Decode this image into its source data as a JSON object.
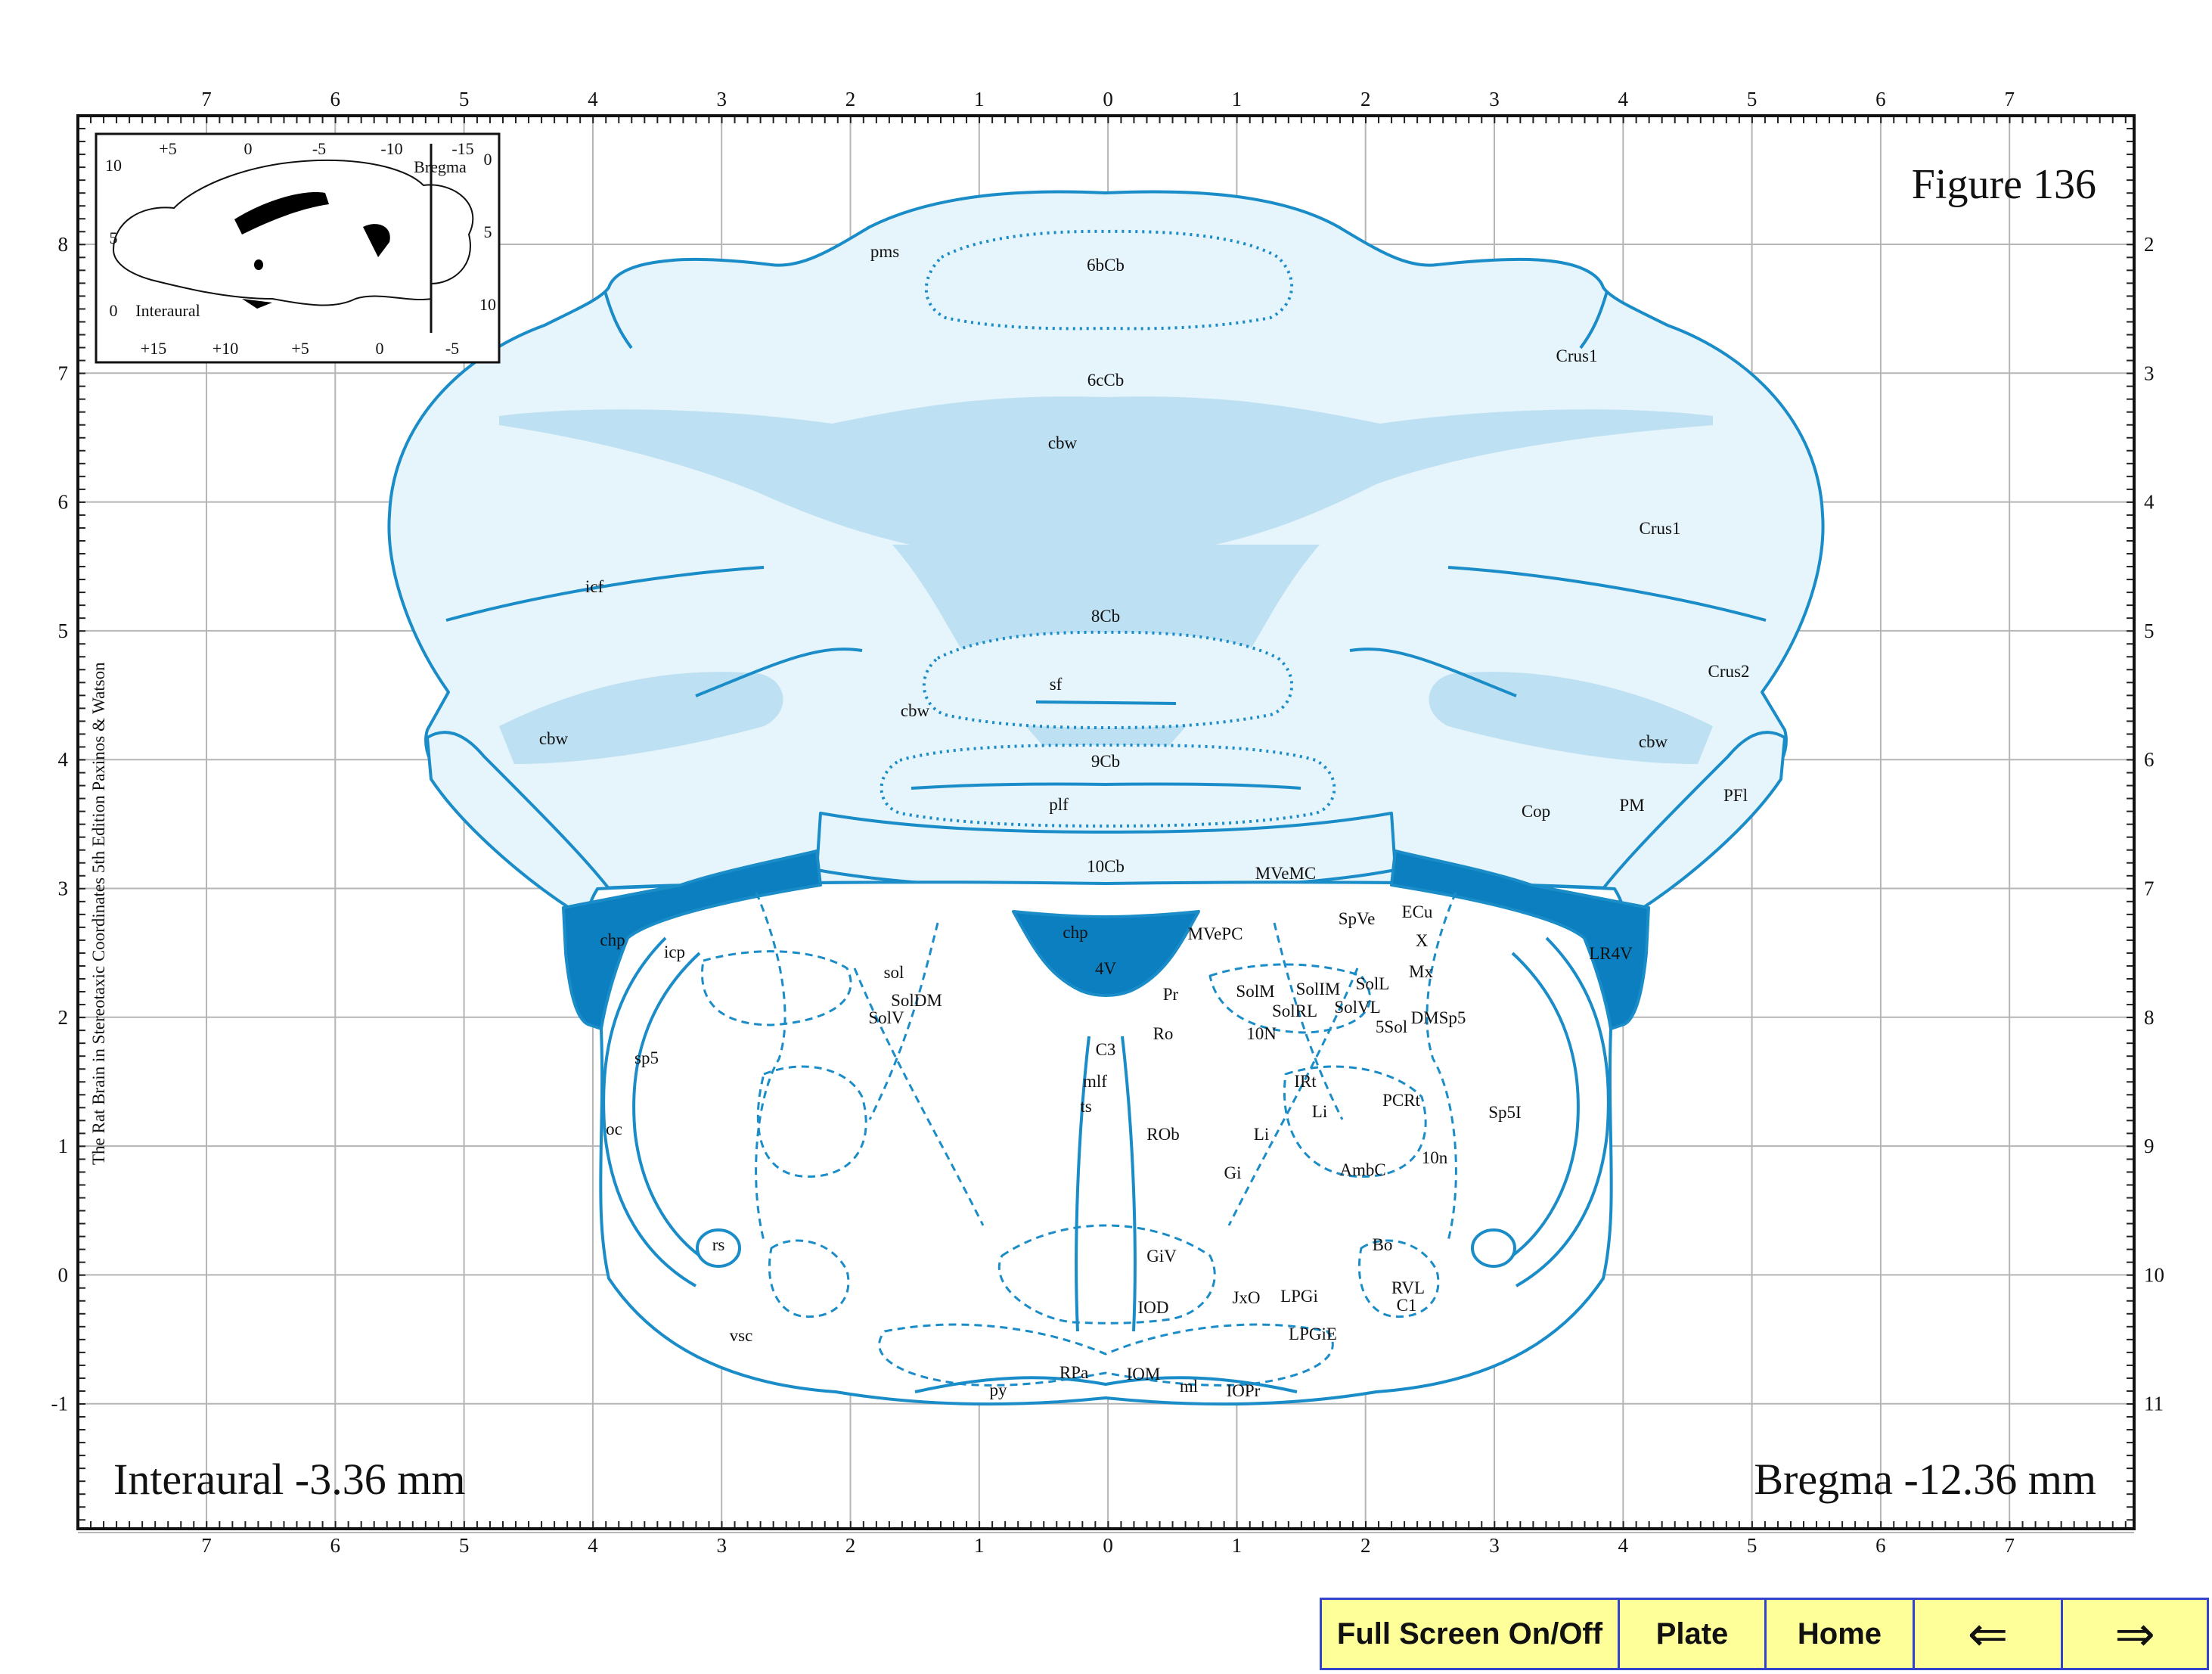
{
  "figure_title": "Figure 136",
  "interaural_caption": "Interaural -3.36 mm",
  "bregma_caption": "Bregma -12.36 mm",
  "side_credit": "The Rat Brain in Stereotaxic Coordinates  5th Edition  Paxinos & Watson",
  "colors": {
    "outline": "#1a8cc8",
    "white_matter": "#bde0f2",
    "gray_matter": "#e6f4fb",
    "choroid": "#0c7fc1",
    "grid": "#b5b5b5",
    "nav_bg": "#ffff99",
    "nav_border": "#3344cc"
  },
  "axes": {
    "top": [
      "7",
      "6",
      "5",
      "4",
      "3",
      "2",
      "1",
      "0",
      "1",
      "2",
      "3",
      "4",
      "5",
      "6",
      "7"
    ],
    "bottom": [
      "7",
      "6",
      "5",
      "4",
      "3",
      "2",
      "1",
      "0",
      "1",
      "2",
      "3",
      "4",
      "5",
      "6",
      "7"
    ],
    "left": [
      "8",
      "7",
      "6",
      "5",
      "4",
      "3",
      "2",
      "1",
      "0",
      "-1"
    ],
    "right": [
      "2",
      "3",
      "4",
      "5",
      "6",
      "7",
      "8",
      "9",
      "10",
      "11"
    ]
  },
  "inset": {
    "top_ticks": [
      "+5",
      "0",
      "-5",
      "-10",
      "-15"
    ],
    "bottom_ticks": [
      "+15",
      "+10",
      "+5",
      "0",
      "-5"
    ],
    "left_ticks": [
      "10",
      "5",
      "0"
    ],
    "right_ticks": [
      "0",
      "5",
      "10"
    ],
    "bregma_label": "Bregma",
    "interaural_label": "Interaural"
  },
  "structures": [
    "pms",
    "6bCb",
    "6cCb",
    "cbw",
    "Crus1",
    "Crus1",
    "icf",
    "8Cb",
    "sf",
    "cbw",
    "Crus2",
    "cbw",
    "cbw",
    "9Cb",
    "plf",
    "Cop",
    "PM",
    "PFl",
    "10Cb",
    "MVeMC",
    "chp",
    "chp",
    "4V",
    "MVePC",
    "SpVe",
    "ECu",
    "X",
    "LR4V",
    "icp",
    "sol",
    "SolDM",
    "SolV",
    "Pr",
    "SolM",
    "SolIM",
    "SolL",
    "SolRL",
    "SolVL",
    "Mx",
    "C3",
    "Ro",
    "10N",
    "5Sol",
    "DMSp5",
    "mlf",
    "sp5",
    "IRt",
    "PCRt",
    "Sp5I",
    "ts",
    "Li",
    "ROb",
    "oc",
    "Li",
    "Gi",
    "AmbC",
    "10n",
    "rs",
    "GiV",
    "Bo",
    "JxO",
    "LPGi",
    "RVL",
    "IOD",
    "C1",
    "vsc",
    "LPGiE",
    "RPa",
    "IOM",
    "ml",
    "py",
    "IOPr"
  ],
  "navigation": {
    "fullscreen": "Full Screen On/Off",
    "plate": "Plate",
    "home": "Home",
    "prev": "⇐",
    "next": "⇒"
  }
}
